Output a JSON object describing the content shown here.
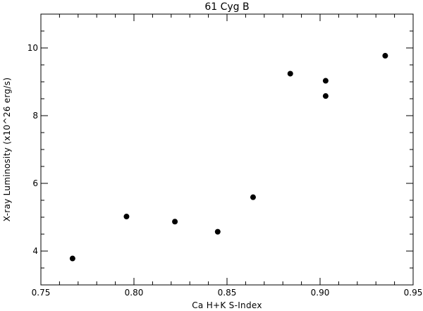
{
  "chart_data": {
    "type": "scatter",
    "title": "61 Cyg B",
    "xlabel": "Ca H+K S-Index",
    "ylabel": "X-ray Luminosity (x10^26 erg/s)",
    "xlim": [
      0.75,
      0.95
    ],
    "ylim": [
      3.0,
      11.0
    ],
    "x_major_ticks": [
      0.75,
      0.8,
      0.85,
      0.9,
      0.95
    ],
    "x_tick_labels": [
      "0.75",
      "0.80",
      "0.85",
      "0.90",
      "0.95"
    ],
    "x_minor_step": 0.01,
    "y_major_ticks": [
      4,
      6,
      8,
      10
    ],
    "y_tick_labels": [
      "4",
      "6",
      "8",
      "10"
    ],
    "y_minor_step": 0.5,
    "grid": false,
    "marker_color": "#000000",
    "series": [
      {
        "points": [
          [
            0.767,
            3.78
          ],
          [
            0.796,
            5.02
          ],
          [
            0.822,
            4.87
          ],
          [
            0.845,
            4.57
          ],
          [
            0.864,
            5.59
          ],
          [
            0.884,
            9.24
          ],
          [
            0.903,
            9.03
          ],
          [
            0.903,
            8.58
          ],
          [
            0.935,
            9.77
          ]
        ]
      }
    ]
  }
}
